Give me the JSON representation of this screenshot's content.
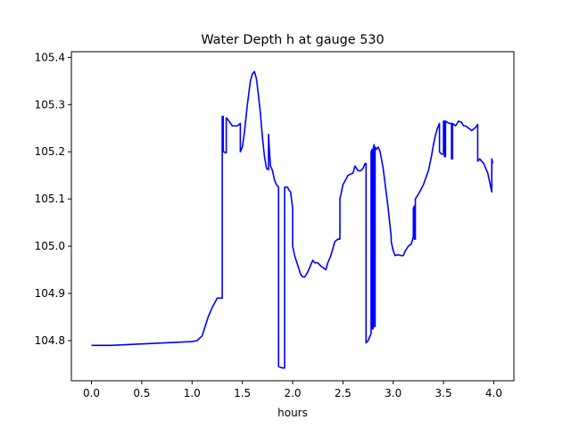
{
  "chart_data": {
    "type": "line",
    "title": "Water Depth h at gauge 530",
    "xlabel": "hours",
    "ylabel": "",
    "xlim": [
      -0.2,
      4.2
    ],
    "ylim": [
      104.715,
      105.412
    ],
    "x_ticks": [
      0.0,
      0.5,
      1.0,
      1.5,
      2.0,
      2.5,
      3.0,
      3.5,
      4.0
    ],
    "x_tick_labels": [
      "0.0",
      "0.5",
      "1.0",
      "1.5",
      "2.0",
      "2.5",
      "3.0",
      "3.5",
      "4.0"
    ],
    "y_ticks": [
      104.8,
      104.9,
      105.0,
      105.1,
      105.2,
      105.3,
      105.4
    ],
    "y_tick_labels": [
      "104.8",
      "104.9",
      "105.0",
      "105.1",
      "105.2",
      "105.3",
      "105.4"
    ],
    "grid": false,
    "legend": "none",
    "series": [
      {
        "color": "#0000ff",
        "x": [
          0.0,
          0.2,
          0.6,
          1.0,
          1.05,
          1.1,
          1.13,
          1.16,
          1.2,
          1.25,
          1.3,
          1.3,
          1.31,
          1.31,
          1.32,
          1.33,
          1.34,
          1.34,
          1.35,
          1.4,
          1.45,
          1.48,
          1.48,
          1.49,
          1.5,
          1.52,
          1.55,
          1.58,
          1.6,
          1.62,
          1.64,
          1.66,
          1.68,
          1.7,
          1.72,
          1.74,
          1.76,
          1.76,
          1.77,
          1.78,
          1.8,
          1.82,
          1.84,
          1.86,
          1.86,
          1.9,
          1.92,
          1.92,
          1.95,
          1.96,
          1.98,
          2.0,
          2.0,
          2.02,
          2.05,
          2.08,
          2.1,
          2.12,
          2.15,
          2.18,
          2.2,
          2.22,
          2.25,
          2.28,
          2.3,
          2.33,
          2.35,
          2.38,
          2.4,
          2.42,
          2.45,
          2.47,
          2.47,
          2.5,
          2.55,
          2.6,
          2.62,
          2.65,
          2.68,
          2.7,
          2.72,
          2.73,
          2.73,
          2.75,
          2.78,
          2.78,
          2.79,
          2.79,
          2.8,
          2.8,
          2.81,
          2.81,
          2.82,
          2.82,
          2.83,
          2.85,
          2.87,
          2.9,
          2.95,
          2.98,
          2.98,
          3.0,
          3.02,
          3.05,
          3.08,
          3.1,
          3.12,
          3.15,
          3.18,
          3.2,
          3.2,
          3.21,
          3.21,
          3.22,
          3.22,
          3.25,
          3.3,
          3.35,
          3.38,
          3.4,
          3.42,
          3.44,
          3.45,
          3.46,
          3.46,
          3.48,
          3.5,
          3.5,
          3.51,
          3.51,
          3.52,
          3.52,
          3.54,
          3.56,
          3.58,
          3.58,
          3.59,
          3.59,
          3.62,
          3.65,
          3.68,
          3.7,
          3.72,
          3.75,
          3.78,
          3.8,
          3.82,
          3.84,
          3.84,
          3.86,
          3.88,
          3.9,
          3.92,
          3.94,
          3.96,
          3.97,
          3.98,
          3.98,
          3.99
        ],
        "y": [
          104.79,
          104.79,
          104.794,
          104.798,
          104.8,
          104.81,
          104.83,
          104.85,
          104.87,
          104.89,
          104.89,
          105.275,
          105.275,
          105.2,
          105.2,
          105.198,
          105.198,
          105.272,
          105.27,
          105.255,
          105.255,
          105.26,
          105.2,
          105.205,
          105.21,
          105.24,
          105.3,
          105.35,
          105.365,
          105.37,
          105.355,
          105.32,
          105.28,
          105.23,
          105.19,
          105.165,
          105.162,
          105.237,
          105.2,
          105.17,
          105.16,
          105.14,
          105.13,
          105.125,
          104.745,
          104.742,
          104.742,
          105.125,
          105.125,
          105.12,
          105.115,
          105.08,
          105.0,
          104.98,
          104.96,
          104.94,
          104.935,
          104.935,
          104.945,
          104.96,
          104.97,
          104.965,
          104.965,
          104.958,
          104.955,
          104.95,
          104.965,
          104.98,
          104.995,
          105.01,
          105.015,
          105.015,
          105.1,
          105.13,
          105.15,
          105.155,
          105.17,
          105.16,
          105.16,
          105.165,
          105.175,
          105.175,
          104.795,
          104.8,
          104.815,
          105.2,
          105.205,
          104.825,
          104.825,
          105.205,
          105.215,
          104.83,
          104.83,
          105.21,
          105.205,
          105.21,
          105.2,
          105.165,
          105.08,
          105.02,
          105.01,
          104.99,
          104.98,
          104.982,
          104.98,
          104.98,
          104.99,
          105.0,
          105.005,
          105.02,
          105.08,
          105.085,
          105.015,
          105.015,
          105.1,
          105.11,
          105.13,
          105.16,
          105.19,
          105.215,
          105.235,
          105.25,
          105.255,
          105.26,
          105.2,
          105.195,
          105.195,
          105.265,
          105.265,
          105.19,
          105.19,
          105.265,
          105.262,
          105.26,
          105.26,
          105.185,
          105.185,
          105.26,
          105.255,
          105.265,
          105.262,
          105.255,
          105.255,
          105.25,
          105.245,
          105.248,
          105.252,
          105.258,
          105.18,
          105.185,
          105.18,
          105.175,
          105.165,
          105.155,
          105.135,
          105.125,
          105.115,
          105.185,
          105.175
        ]
      }
    ]
  }
}
